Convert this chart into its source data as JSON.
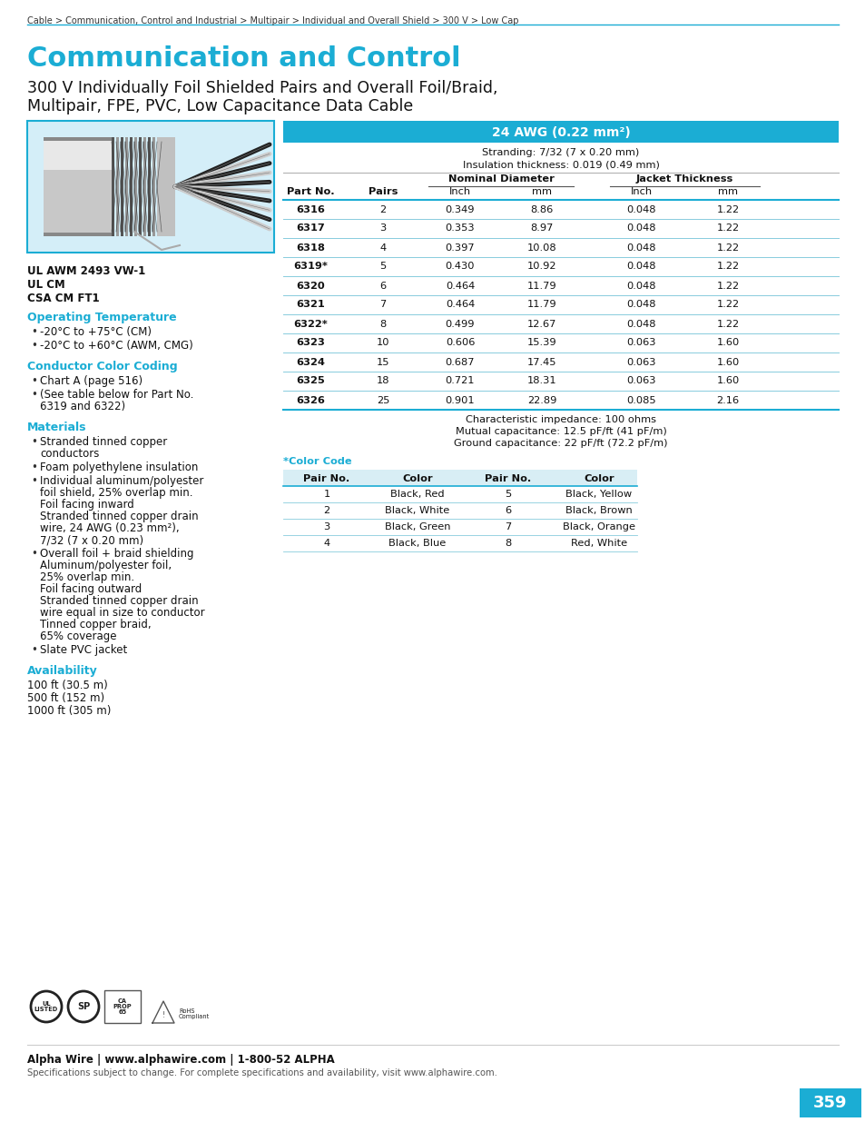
{
  "page_color": "#ffffff",
  "cyan": "#1BADD4",
  "teal_header": "#1BADD4",
  "light_blue_bg": "#d4eef8",
  "breadcrumb": "Cable > Communication, Control and Industrial > Multipair > Individual and Overall Shield > 300 V > Low Cap",
  "main_title": "Communication and Control",
  "subtitle_line1": "300 V Individually Foil Shielded Pairs and Overall Foil/Braid,",
  "subtitle_line2": "Multipair, FPE, PVC, Low Capacitance Data Cable",
  "cert_lines": [
    "UL AWM 2493 VW-1",
    "UL CM",
    "CSA CM FT1"
  ],
  "section_op_temp": "Operating Temperature",
  "op_temp_items": [
    "-20°C to +75°C (CM)",
    "-20°C to +60°C (AWM, CMG)"
  ],
  "section_color_coding": "Conductor Color Coding",
  "color_coding_item1": "Chart A (page 516)",
  "color_coding_item2a": "(See table below for Part No.",
  "color_coding_item2b": "6319 and 6322)",
  "section_materials": "Materials",
  "mat1": "Stranded tinned copper",
  "mat1b": "conductors",
  "mat2": "Foam polyethylene insulation",
  "mat3a": "Individual aluminum/polyester",
  "mat3b": "foil shield, 25% overlap min.",
  "mat3c": "Foil facing inward",
  "mat3d": "Stranded tinned copper drain",
  "mat3e": "wire, 24 AWG (0.23 mm²),",
  "mat3f": "7/32 (7 x 0.20 mm)",
  "mat4a": "Overall foil + braid shielding",
  "mat4b": "Aluminum/polyester foil,",
  "mat4c": "25% overlap min.",
  "mat4d": "Foil facing outward",
  "mat4e": "Stranded tinned copper drain",
  "mat4f": "wire equal in size to conductor",
  "mat4g": "Tinned copper braid,",
  "mat4h": "65% coverage",
  "mat5": "Slate PVC jacket",
  "section_availability": "Availability",
  "avail_items": [
    "100 ft (30.5 m)",
    "500 ft (152 m)",
    "1000 ft (305 m)"
  ],
  "awg_header": "24 AWG (0.22 mm²)",
  "strand_line1": "Stranding: 7/32 (7 x 0.20 mm)",
  "strand_line2": "Insulation thickness: 0.019 (0.49 mm)",
  "col_headers_1": [
    "Part No.",
    "Pairs",
    "Nominal Diameter",
    "Jacket Thickness"
  ],
  "col_headers_2": [
    "Inch",
    "mm",
    "Inch",
    "mm"
  ],
  "table_data": [
    [
      "6316",
      "2",
      "0.349",
      "8.86",
      "0.048",
      "1.22"
    ],
    [
      "6317",
      "3",
      "0.353",
      "8.97",
      "0.048",
      "1.22"
    ],
    [
      "6318",
      "4",
      "0.397",
      "10.08",
      "0.048",
      "1.22"
    ],
    [
      "6319*",
      "5",
      "0.430",
      "10.92",
      "0.048",
      "1.22"
    ],
    [
      "6320",
      "6",
      "0.464",
      "11.79",
      "0.048",
      "1.22"
    ],
    [
      "6321",
      "7",
      "0.464",
      "11.79",
      "0.048",
      "1.22"
    ],
    [
      "6322*",
      "8",
      "0.499",
      "12.67",
      "0.048",
      "1.22"
    ],
    [
      "6323",
      "10",
      "0.606",
      "15.39",
      "0.063",
      "1.60"
    ],
    [
      "6324",
      "15",
      "0.687",
      "17.45",
      "0.063",
      "1.60"
    ],
    [
      "6325",
      "18",
      "0.721",
      "18.31",
      "0.063",
      "1.60"
    ],
    [
      "6326",
      "25",
      "0.901",
      "22.89",
      "0.085",
      "2.16"
    ]
  ],
  "char1": "Characteristic impedance: 100 ohms",
  "char2": "Mutual capacitance: 12.5 pF/ft (41 pF/m)",
  "char3": "Ground capacitance: 22 pF/ft (72.2 pF/m)",
  "color_code_label": "*Color Code",
  "cc_headers": [
    "Pair No.",
    "Color",
    "Pair No.",
    "Color"
  ],
  "cc_data": [
    [
      "1",
      "Black, Red",
      "5",
      "Black, Yellow"
    ],
    [
      "2",
      "Black, White",
      "6",
      "Black, Brown"
    ],
    [
      "3",
      "Black, Green",
      "7",
      "Black, Orange"
    ],
    [
      "4",
      "Black, Blue",
      "8",
      "Red, White"
    ]
  ],
  "footer_bold": "Alpha Wire | www.alphawire.com | 1-800-52 ALPHA",
  "footer_small": "Specifications subject to change. For complete specifications and availability, visit www.alphawire.com.",
  "page_num": "359"
}
